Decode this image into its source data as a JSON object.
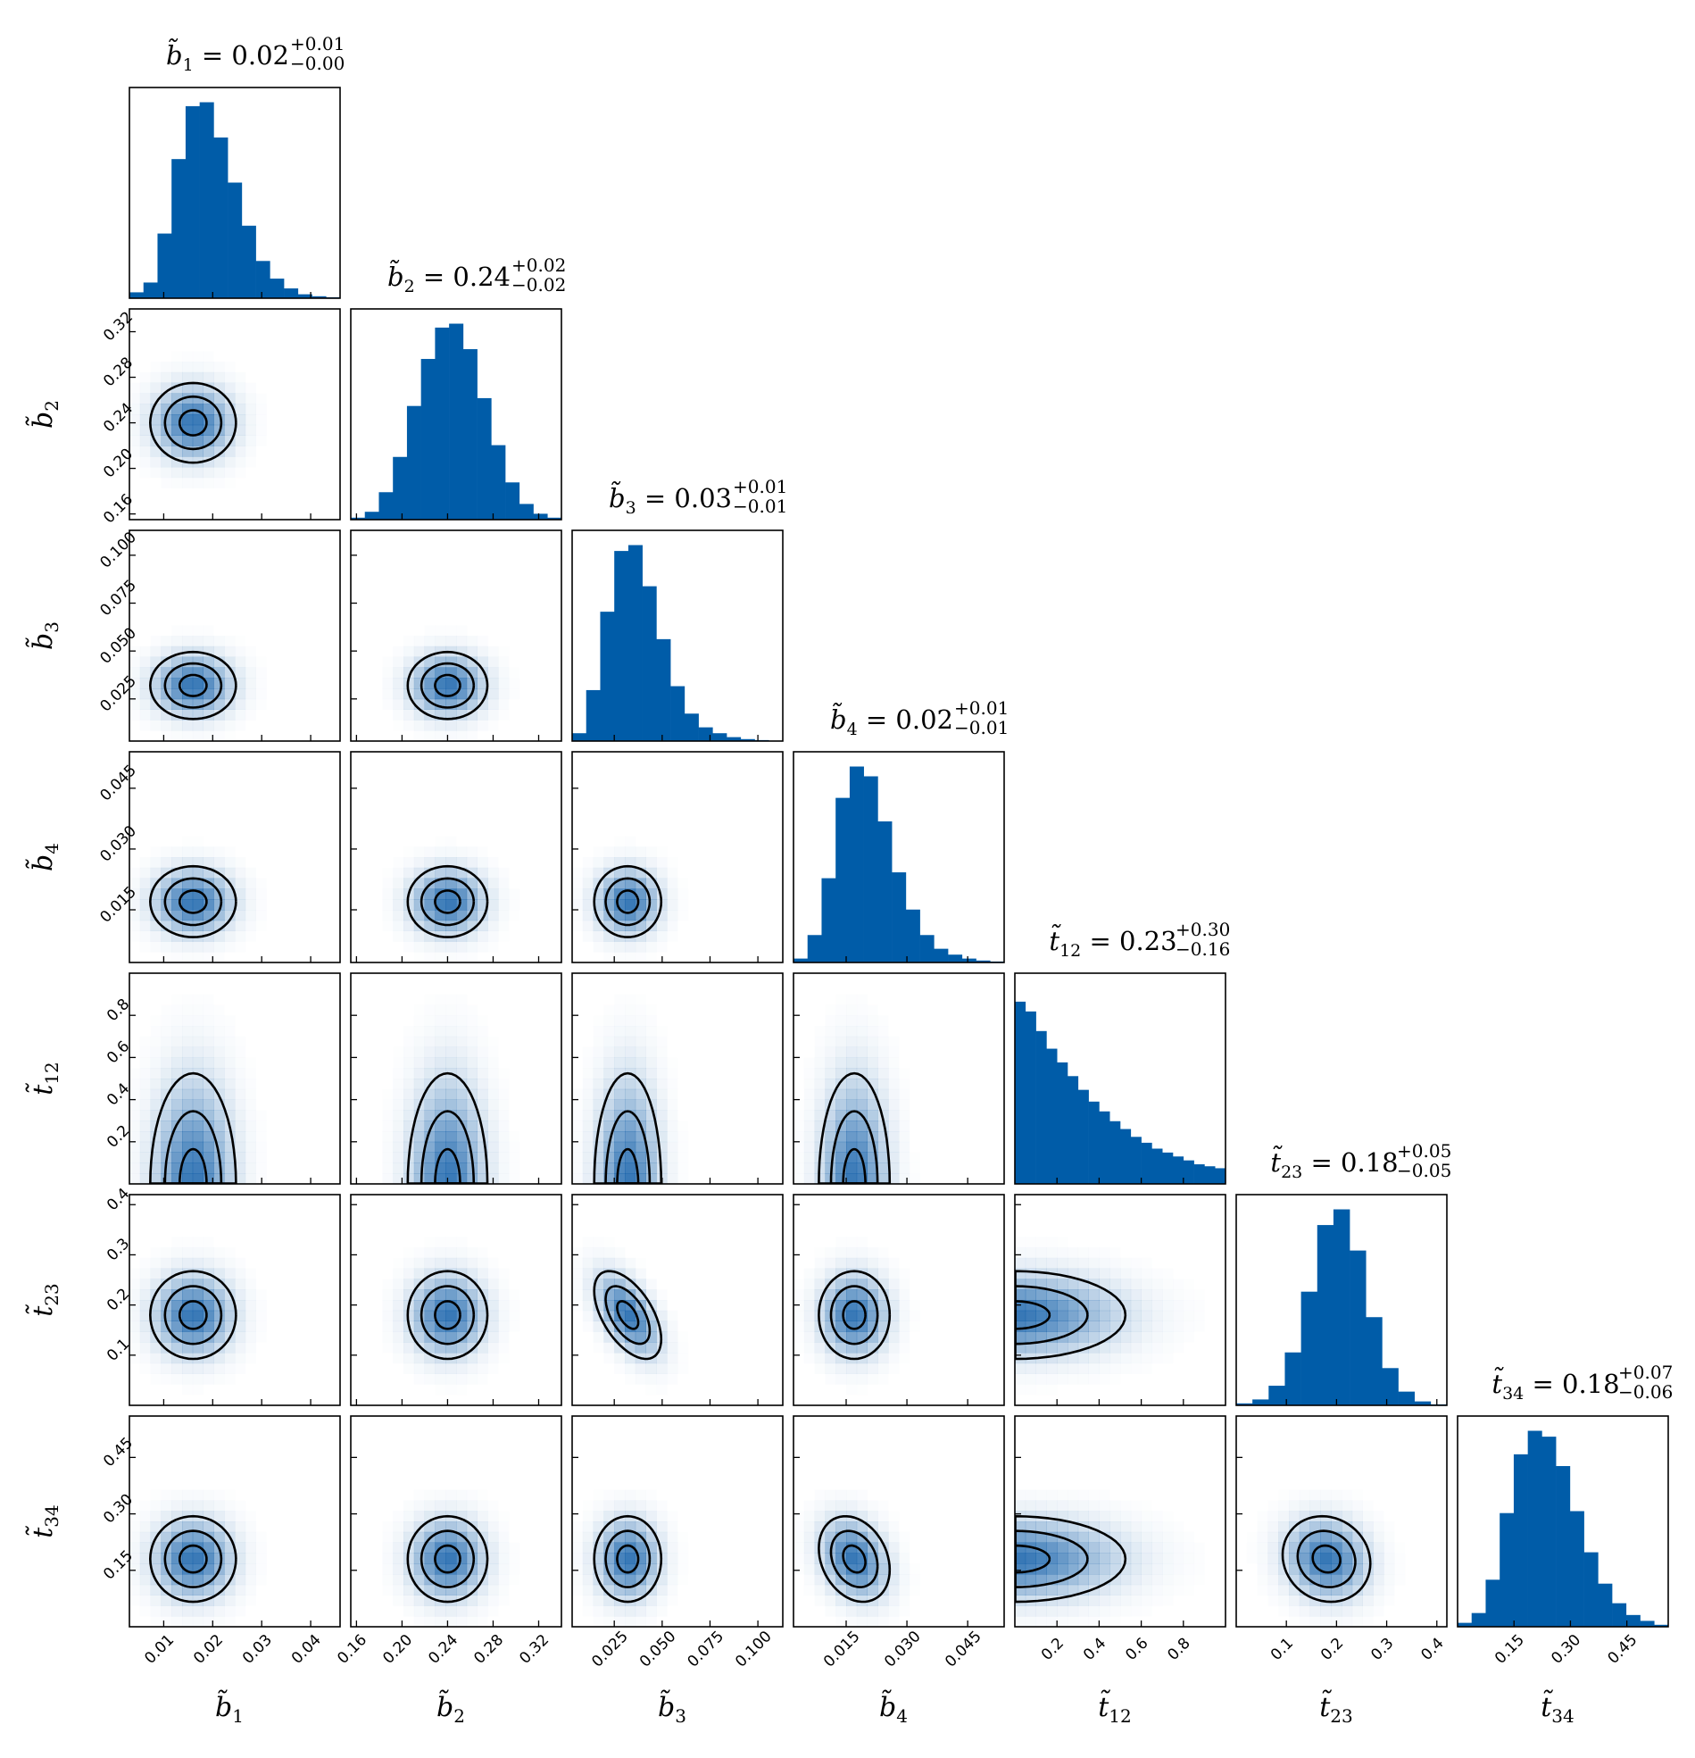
{
  "chart_data": {
    "type": "corner",
    "colors": {
      "hist": "#005ca8",
      "contour": "#000000",
      "density": "#0b5aa6"
    },
    "params": [
      {
        "symbol": "b̃",
        "sub": "1",
        "median": "0.02",
        "plus": "+0.01",
        "minus": "−0.00",
        "range": [
          0.003,
          0.046
        ],
        "ticks": [
          0.01,
          0.02,
          0.03,
          0.04
        ],
        "tick_labels": [
          "0.01",
          "0.02",
          "0.03",
          "0.04"
        ],
        "hist": [
          0.03,
          0.08,
          0.33,
          0.71,
          0.98,
          1.0,
          0.82,
          0.59,
          0.37,
          0.19,
          0.1,
          0.05,
          0.02,
          0.01,
          0.005
        ],
        "center": 0.016,
        "sigma": 0.005
      },
      {
        "symbol": "b̃",
        "sub": "2",
        "median": "0.24",
        "plus": "+0.02",
        "minus": "−0.02",
        "range": [
          0.155,
          0.34
        ],
        "ticks": [
          0.16,
          0.2,
          0.24,
          0.28,
          0.32
        ],
        "tick_labels": [
          "0.16",
          "0.20",
          "0.24",
          "0.28",
          "0.32"
        ],
        "hist": [
          0.01,
          0.04,
          0.14,
          0.32,
          0.58,
          0.82,
          0.98,
          1.0,
          0.87,
          0.62,
          0.38,
          0.19,
          0.08,
          0.03,
          0.01
        ],
        "center": 0.24,
        "sigma": 0.02
      },
      {
        "symbol": "b̃",
        "sub": "3",
        "median": "0.03",
        "plus": "+0.01",
        "minus": "−0.01",
        "range": [
          0.003,
          0.113
        ],
        "ticks": [
          0.025,
          0.05,
          0.075,
          0.1
        ],
        "tick_labels": [
          "0.025",
          "0.050",
          "0.075",
          "0.100"
        ],
        "hist": [
          0.04,
          0.26,
          0.66,
          0.97,
          1.0,
          0.79,
          0.52,
          0.28,
          0.14,
          0.07,
          0.04,
          0.02,
          0.01,
          0.005,
          0.002
        ],
        "center": 0.032,
        "sigma": 0.01
      },
      {
        "symbol": "b̃",
        "sub": "4",
        "median": "0.02",
        "plus": "+0.01",
        "minus": "−0.01",
        "range": [
          0.002,
          0.054
        ],
        "ticks": [
          0.015,
          0.03,
          0.045
        ],
        "tick_labels": [
          "0.015",
          "0.030",
          "0.045"
        ],
        "hist": [
          0.02,
          0.14,
          0.43,
          0.84,
          1.0,
          0.95,
          0.72,
          0.46,
          0.27,
          0.14,
          0.07,
          0.04,
          0.02,
          0.01,
          0.005
        ],
        "center": 0.017,
        "sigma": 0.005
      },
      {
        "symbol": "t̃",
        "sub": "12",
        "median": "0.23",
        "plus": "+0.30",
        "minus": "−0.16",
        "range": [
          0.0,
          1.0
        ],
        "ticks": [
          0.2,
          0.4,
          0.6,
          0.8
        ],
        "tick_labels": [
          "0.2",
          "0.4",
          "0.6",
          "0.8"
        ],
        "hist": [
          0.93,
          0.88,
          0.78,
          0.69,
          0.62,
          0.55,
          0.48,
          0.42,
          0.37,
          0.32,
          0.28,
          0.24,
          0.21,
          0.18,
          0.16,
          0.14,
          0.12,
          0.1,
          0.09,
          0.08
        ],
        "center": 0.0,
        "sigma": 0.3
      },
      {
        "symbol": "t̃",
        "sub": "23",
        "median": "0.18",
        "plus": "+0.05",
        "minus": "−0.05",
        "range": [
          0.0,
          0.42
        ],
        "ticks": [
          0.1,
          0.2,
          0.3,
          0.4
        ],
        "tick_labels": [
          "0.1",
          "0.2",
          "0.3",
          "0.4"
        ],
        "hist": [
          0.01,
          0.03,
          0.1,
          0.27,
          0.58,
          0.92,
          1.0,
          0.79,
          0.45,
          0.19,
          0.07,
          0.02,
          0.005
        ],
        "center": 0.18,
        "sigma": 0.05
      },
      {
        "symbol": "t̃",
        "sub": "34",
        "median": "0.18",
        "plus": "+0.07",
        "minus": "−0.06",
        "range": [
          0.0,
          0.56
        ],
        "ticks": [
          0.15,
          0.3,
          0.45
        ],
        "tick_labels": [
          "0.15",
          "0.30",
          "0.45"
        ],
        "hist": [
          0.02,
          0.07,
          0.24,
          0.58,
          0.88,
          1.0,
          0.97,
          0.82,
          0.59,
          0.38,
          0.22,
          0.12,
          0.06,
          0.03,
          0.01
        ],
        "center": 0.18,
        "sigma": 0.065
      }
    ],
    "correlations": [
      {
        "i": 5,
        "j": 2,
        "rho": -0.55
      },
      {
        "i": 6,
        "j": 3,
        "rho": -0.25
      },
      {
        "i": 6,
        "j": 5,
        "rho": -0.1
      }
    ]
  }
}
